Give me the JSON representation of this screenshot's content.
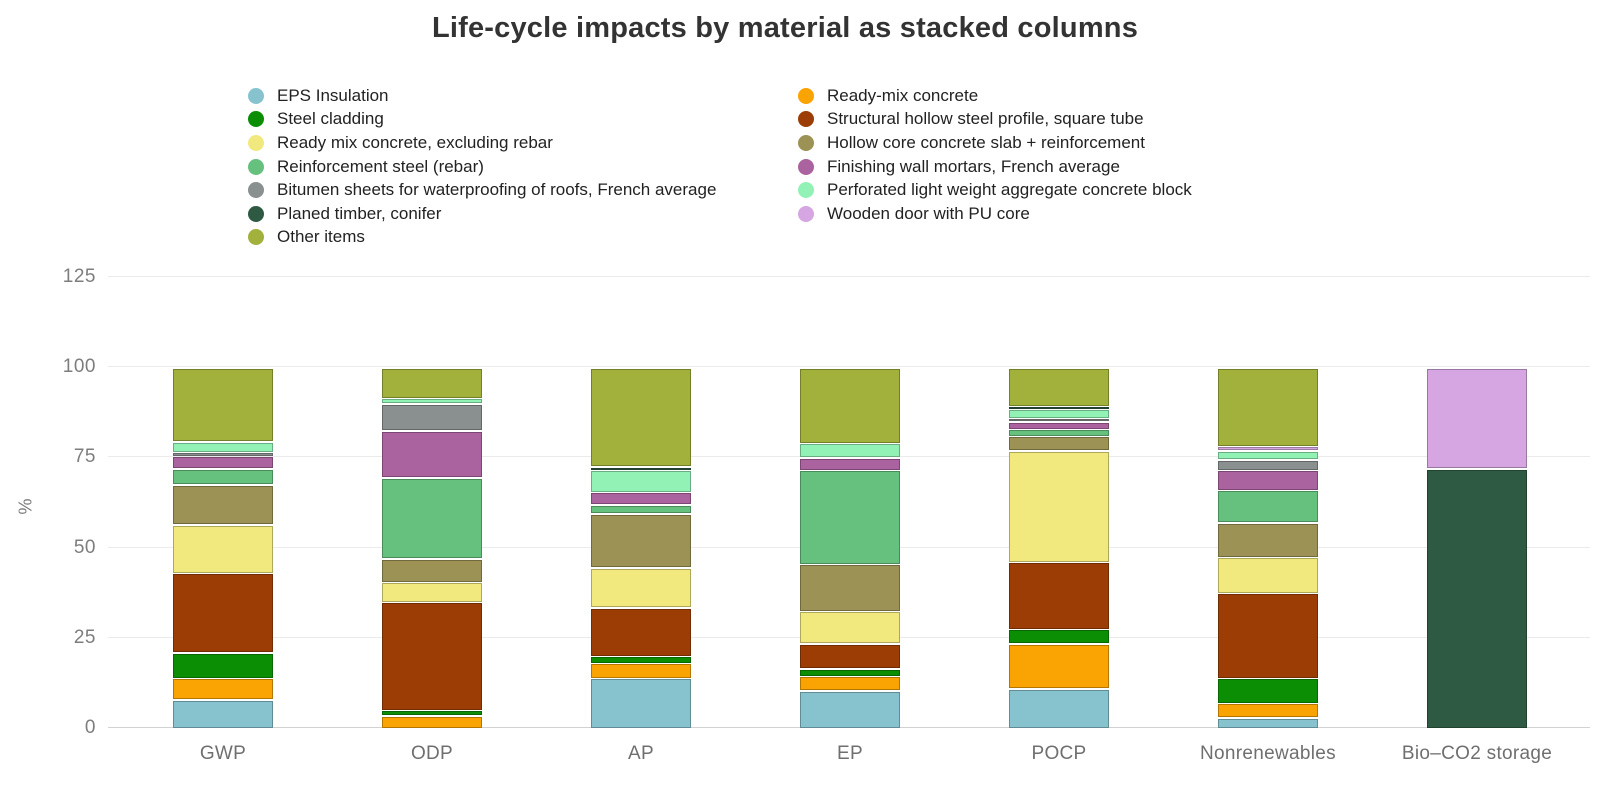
{
  "title": "Life-cycle impacts by material as stacked columns",
  "y_axis": {
    "label": "%",
    "ticks": [
      0,
      25,
      50,
      75,
      100,
      125
    ]
  },
  "chart_data": {
    "type": "bar",
    "stacked": true,
    "title": "Life-cycle impacts by material as stacked columns",
    "xlabel": "",
    "ylabel": "%",
    "ylim": [
      0,
      125
    ],
    "grid": true,
    "legend_position": "top",
    "categories": [
      "GWP",
      "ODP",
      "AP",
      "EP",
      "POCP",
      "Nonrenewables",
      "Bio–CO2 storage"
    ],
    "series": [
      {
        "name": "EPS Insulation",
        "color": "#87c3ce",
        "values": [
          8,
          0,
          14,
          10.5,
          11,
          3,
          0
        ]
      },
      {
        "name": "Ready-mix concrete",
        "color": "#f9a402",
        "values": [
          6,
          3.5,
          4,
          4,
          12.5,
          4,
          0
        ]
      },
      {
        "name": "Steel cladding",
        "color": "#0b8e04",
        "values": [
          7,
          1.5,
          2,
          2,
          4,
          7,
          0
        ]
      },
      {
        "name": "Structural hollow steel profile, square tube",
        "color": "#9b3d04",
        "values": [
          22,
          30,
          13.5,
          7,
          18.5,
          23.5,
          0
        ]
      },
      {
        "name": "Ready mix concrete, excluding rebar",
        "color": "#f2e97e",
        "values": [
          13.5,
          5.5,
          11,
          9,
          31,
          10,
          0
        ]
      },
      {
        "name": "Hollow core concrete slab + reinforcement",
        "color": "#9c9255",
        "values": [
          11,
          6.5,
          15,
          13,
          4,
          9.5,
          0
        ]
      },
      {
        "name": "Reinforcement steel (rebar)",
        "color": "#66c17f",
        "values": [
          4.5,
          22.5,
          2.5,
          26,
          2,
          9,
          0
        ]
      },
      {
        "name": "Finishing wall mortars, French average",
        "color": "#aa639e",
        "values": [
          3.5,
          13,
          3.5,
          3.5,
          2,
          5.5,
          0
        ]
      },
      {
        "name": "Bitumen sheets for waterproofing of roofs, French average",
        "color": "#8a8f8f",
        "values": [
          1,
          7.5,
          0,
          0,
          1,
          3,
          0
        ]
      },
      {
        "name": "Perforated light weight aggregate concrete block",
        "color": "#92f2b6",
        "values": [
          3,
          1.5,
          6,
          4,
          2.5,
          2.5,
          0
        ]
      },
      {
        "name": "Planed timber, conifer",
        "color": "#2e5a44",
        "values": [
          0,
          0,
          1,
          0,
          0.7,
          0,
          72
        ]
      },
      {
        "name": "Wooden door with PU core",
        "color": "#d5a6e1",
        "values": [
          0,
          0,
          0,
          0,
          0,
          1.3,
          28
        ]
      },
      {
        "name": "Other items",
        "color": "#a1b13b",
        "values": [
          20.5,
          8.5,
          27.5,
          21,
          10.8,
          21.7,
          0
        ]
      }
    ]
  }
}
